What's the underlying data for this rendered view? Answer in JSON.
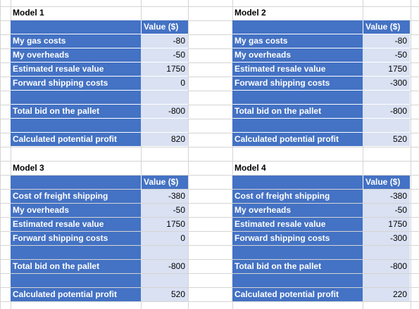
{
  "sheet": {
    "value_header": "Value ($)",
    "colors": {
      "header_fill": "#4472c4",
      "value_fill": "#d9e1f2",
      "grid": "#d4d4d4"
    }
  },
  "models": [
    {
      "title": "Model 1",
      "rows": [
        {
          "label": "My gas costs",
          "value": "-80"
        },
        {
          "label": "My overheads",
          "value": "-50"
        },
        {
          "label": "Estimated resale value",
          "value": "1750"
        },
        {
          "label": "Forward shipping costs",
          "value": "0"
        },
        {
          "label": "",
          "value": ""
        },
        {
          "label": "Total bid on the pallet",
          "value": "-800"
        },
        {
          "label": "",
          "value": ""
        },
        {
          "label": "Calculated potential profit",
          "value": "820"
        }
      ]
    },
    {
      "title": "Model 2",
      "rows": [
        {
          "label": "My gas costs",
          "value": "-80"
        },
        {
          "label": "My overheads",
          "value": "-50"
        },
        {
          "label": "Estimated resale value",
          "value": "1750"
        },
        {
          "label": "Forward shipping costs",
          "value": "-300"
        },
        {
          "label": "",
          "value": ""
        },
        {
          "label": "Total bid on the pallet",
          "value": "-800"
        },
        {
          "label": "",
          "value": ""
        },
        {
          "label": "Calculated potential profit",
          "value": "520"
        }
      ]
    },
    {
      "title": "Model 3",
      "rows": [
        {
          "label": "Cost of freight shipping",
          "value": "-380"
        },
        {
          "label": "My overheads",
          "value": "-50"
        },
        {
          "label": "Estimated resale value",
          "value": "1750"
        },
        {
          "label": "Forward shipping costs",
          "value": "0"
        },
        {
          "label": "",
          "value": ""
        },
        {
          "label": "Total bid on the pallet",
          "value": "-800"
        },
        {
          "label": "",
          "value": ""
        },
        {
          "label": "Calculated potential profit",
          "value": "520"
        }
      ]
    },
    {
      "title": "Model 4",
      "rows": [
        {
          "label": "Cost of freight shipping",
          "value": "-380"
        },
        {
          "label": "My overheads",
          "value": "-50"
        },
        {
          "label": "Estimated resale value",
          "value": "1750"
        },
        {
          "label": "Forward shipping costs",
          "value": "-300"
        },
        {
          "label": "",
          "value": ""
        },
        {
          "label": "Total bid on the pallet",
          "value": "-800"
        },
        {
          "label": "",
          "value": ""
        },
        {
          "label": "Calculated potential profit",
          "value": "220"
        }
      ]
    }
  ]
}
